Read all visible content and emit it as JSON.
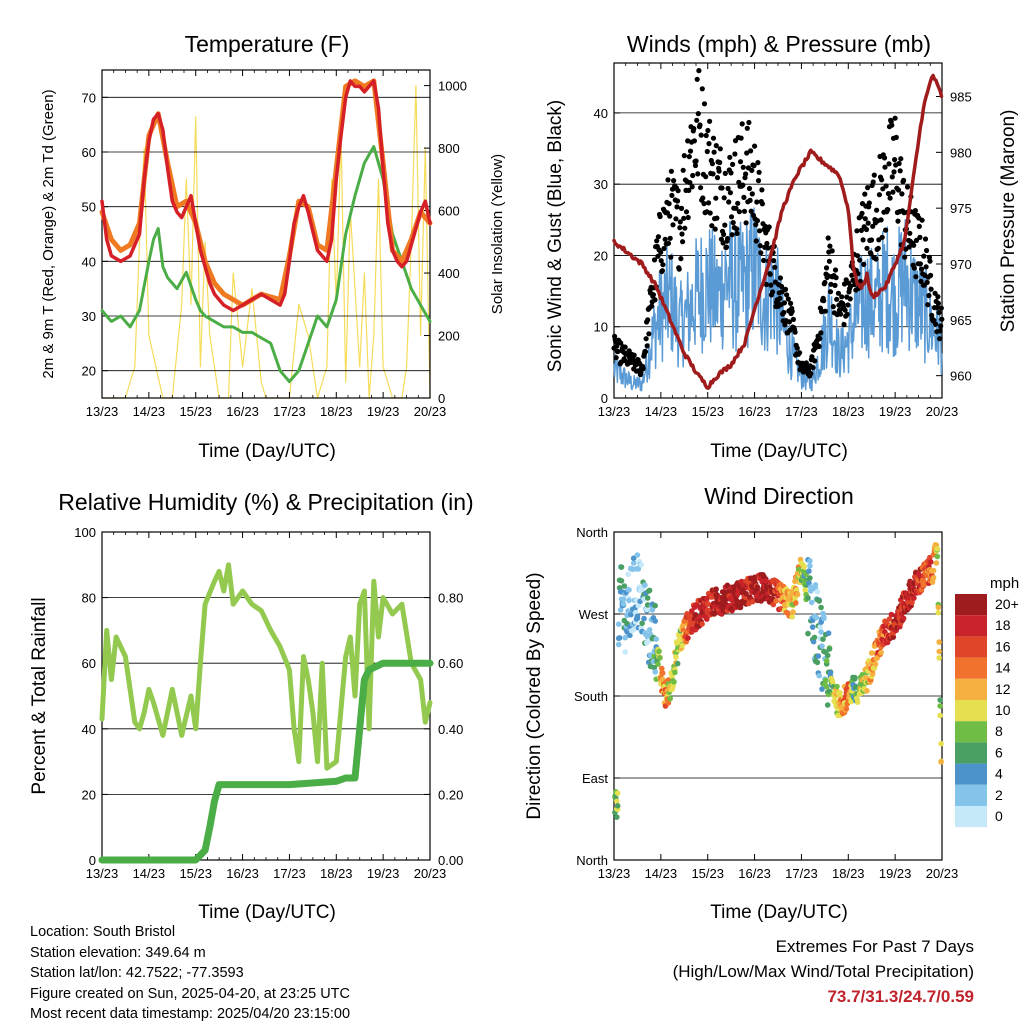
{
  "panels": {
    "temperature": {
      "title": "Temperature (F)",
      "xlabel": "Time (Day/UTC)",
      "ylabel_left": "2m & 9m T (Red, Orange) & 2m Td (Green)",
      "ylabel_right": "Solar Insolation (Yellow)"
    },
    "winds": {
      "title": "Winds (mph) & Pressure (mb)",
      "xlabel": "Time (Day/UTC)",
      "ylabel_left": "Sonic Wind & Gust (Blue, Black)",
      "ylabel_right": "Station Pressure (Maroon)"
    },
    "humidity": {
      "title": "Relative Humidity (%) & Precipitation (in)",
      "xlabel": "Time (Day/UTC)",
      "ylabel_left": "Percent & Total Rainfall"
    },
    "direction": {
      "title": "Wind Direction",
      "xlabel": "Time (Day/UTC)",
      "ylabel_left": "Direction (Colored By Speed)",
      "legend_title": "mph"
    }
  },
  "footer": {
    "location": "Location: South Bristol",
    "elevation": "Station elevation: 349.64 m",
    "latlon": "Station lat/lon: 42.7522; -77.3593",
    "created": "Figure created on Sun, 2025-04-20, at 23:25 UTC",
    "recent": "Most recent data timestamp: 2025/04/20 23:15:00"
  },
  "extremes": {
    "line1": "Extremes For Past 7 Days",
    "line2": "(High/Low/Max Wind/Total Precipitation)",
    "values": "73.7/31.3/24.7/0.59"
  },
  "colors": {
    "temp_2m": "#d62027",
    "temp_9m": "#f07a22",
    "dewpoint": "#4aad45",
    "solar": "#f5dc5a",
    "wind": "#5b9bd5",
    "gust": "#000000",
    "pressure": "#a01c1c",
    "rh": "#92c94e",
    "precip": "#4aad45"
  },
  "chart_data": [
    {
      "type": "line",
      "name": "temperature",
      "x_ticks": [
        "13/23",
        "14/23",
        "15/23",
        "16/23",
        "17/23",
        "18/23",
        "19/23",
        "20/23"
      ],
      "xlim": [
        0,
        7
      ],
      "ylim_left": [
        15,
        75
      ],
      "yticks_left": [
        20,
        30,
        40,
        50,
        60,
        70
      ],
      "ylim_right": [
        0,
        1050
      ],
      "yticks_right": [
        0,
        200,
        400,
        600,
        800,
        1000
      ],
      "grid": true,
      "series": [
        {
          "name": "2m T",
          "x": [
            0,
            0.1,
            0.2,
            0.4,
            0.6,
            0.8,
            0.9,
            1.0,
            1.1,
            1.2,
            1.3,
            1.4,
            1.5,
            1.6,
            1.7,
            1.8,
            1.9,
            2.0,
            2.1,
            2.2,
            2.3,
            2.4,
            2.5,
            2.6,
            2.8,
            3.0,
            3.2,
            3.4,
            3.6,
            3.8,
            3.9,
            4.0,
            4.1,
            4.2,
            4.3,
            4.4,
            4.6,
            4.8,
            4.9,
            5.0,
            5.1,
            5.2,
            5.3,
            5.4,
            5.5,
            5.6,
            5.7,
            5.8,
            5.9,
            6.0,
            6.1,
            6.2,
            6.3,
            6.4,
            6.5,
            6.6,
            6.7,
            6.8,
            6.9,
            7.0
          ],
          "y": [
            51,
            44,
            41,
            40,
            41,
            45,
            55,
            62,
            66,
            67,
            64,
            57,
            51,
            49,
            48,
            50,
            52,
            47,
            42,
            39,
            36,
            34,
            33,
            32,
            31,
            32,
            33,
            34,
            33,
            32,
            34,
            40,
            47,
            50,
            52,
            49,
            42,
            40,
            44,
            55,
            63,
            70,
            73,
            72,
            72,
            71,
            72,
            73,
            68,
            57,
            47,
            42,
            40,
            39,
            40,
            43,
            46,
            49,
            51,
            47
          ]
        },
        {
          "name": "9m T",
          "x": [
            0,
            0.2,
            0.4,
            0.6,
            0.8,
            1.0,
            1.2,
            1.4,
            1.6,
            1.8,
            2.0,
            2.2,
            2.4,
            2.6,
            3.0,
            3.4,
            3.8,
            4.0,
            4.2,
            4.4,
            4.6,
            4.8,
            5.0,
            5.2,
            5.4,
            5.6,
            5.8,
            6.0,
            6.2,
            6.4,
            6.6,
            6.8,
            7.0
          ],
          "y": [
            49,
            44,
            42,
            43,
            47,
            63,
            67,
            58,
            50,
            51,
            47,
            40,
            36,
            34,
            32,
            34,
            33,
            41,
            51,
            50,
            43,
            42,
            57,
            72,
            73,
            72,
            73,
            58,
            42,
            40,
            44,
            49,
            47
          ]
        },
        {
          "name": "2m Td",
          "x": [
            0,
            0.2,
            0.4,
            0.6,
            0.8,
            1.0,
            1.1,
            1.2,
            1.3,
            1.4,
            1.6,
            1.8,
            2.0,
            2.1,
            2.2,
            2.4,
            2.6,
            2.8,
            3.0,
            3.2,
            3.4,
            3.6,
            3.8,
            4.0,
            4.2,
            4.4,
            4.6,
            4.8,
            5.0,
            5.2,
            5.4,
            5.6,
            5.8,
            6.0,
            6.2,
            6.4,
            6.6,
            6.8,
            7.0
          ],
          "y": [
            31,
            29,
            30,
            28,
            31,
            40,
            44,
            46,
            39,
            37,
            35,
            38,
            33,
            31,
            30,
            29,
            28,
            28,
            27,
            27,
            26,
            25,
            20,
            18,
            20,
            25,
            30,
            28,
            33,
            45,
            52,
            58,
            61,
            55,
            45,
            40,
            35,
            32,
            29
          ]
        },
        {
          "name": "Solar",
          "axis": "right",
          "x": [
            0,
            0.3,
            0.5,
            0.7,
            0.8,
            0.9,
            1.0,
            1.3,
            1.5,
            1.7,
            1.8,
            1.9,
            2.0,
            2.1,
            2.2,
            2.3,
            2.5,
            2.7,
            2.8,
            3.0,
            3.2,
            3.4,
            3.5,
            3.6,
            3.8,
            4.0,
            4.2,
            4.4,
            4.6,
            4.8,
            4.9,
            5.0,
            5.1,
            5.2,
            5.3,
            5.5,
            5.6,
            5.7,
            5.8,
            5.9,
            6.0,
            6.2,
            6.4,
            6.5,
            6.6,
            6.7,
            6.8,
            6.9,
            7.0
          ],
          "y": [
            0,
            0,
            0,
            100,
            500,
            800,
            200,
            0,
            0,
            300,
            700,
            300,
            900,
            100,
            500,
            200,
            0,
            0,
            400,
            100,
            350,
            50,
            0,
            0,
            0,
            0,
            300,
            200,
            0,
            100,
            700,
            300,
            850,
            50,
            600,
            100,
            400,
            0,
            200,
            700,
            100,
            0,
            0,
            100,
            500,
            1000,
            200,
            800,
            0
          ]
        }
      ]
    },
    {
      "type": "scatter",
      "name": "winds",
      "x_ticks": [
        "13/23",
        "14/23",
        "15/23",
        "16/23",
        "17/23",
        "18/23",
        "19/23",
        "20/23"
      ],
      "xlim": [
        0,
        7
      ],
      "ylim_left": [
        0,
        47
      ],
      "yticks_left": [
        0,
        10,
        20,
        30,
        40
      ],
      "ylim_right": [
        958,
        988
      ],
      "yticks_right": [
        960,
        965,
        970,
        975,
        980,
        985
      ],
      "grid": true,
      "series": [
        {
          "name": "Sonic Wind",
          "x": [
            0,
            0.2,
            0.4,
            0.6,
            0.8,
            1.0,
            1.2,
            1.4,
            1.6,
            1.8,
            2.0,
            2.2,
            2.4,
            2.6,
            2.8,
            3.0,
            3.2,
            3.4,
            3.6,
            3.8,
            4.0,
            4.2,
            4.4,
            4.6,
            4.8,
            5.0,
            5.2,
            5.4,
            5.6,
            5.8,
            6.0,
            6.2,
            6.4,
            6.6,
            6.8,
            7.0
          ],
          "y": [
            4,
            3,
            2,
            2,
            8,
            12,
            14,
            10,
            12,
            15,
            16,
            14,
            17,
            15,
            16,
            18,
            14,
            16,
            10,
            6,
            3,
            2,
            6,
            12,
            6,
            8,
            12,
            14,
            13,
            16,
            14,
            17,
            14,
            12,
            10,
            8
          ]
        },
        {
          "name": "Gust",
          "x": [
            0,
            0.2,
            0.4,
            0.6,
            0.8,
            1.0,
            1.2,
            1.4,
            1.6,
            1.8,
            2.0,
            2.2,
            2.4,
            2.6,
            2.8,
            3.0,
            3.2,
            3.4,
            3.6,
            3.8,
            4.0,
            4.2,
            4.4,
            4.6,
            4.8,
            5.0,
            5.2,
            5.4,
            5.6,
            5.8,
            6.0,
            6.2,
            6.4,
            6.6,
            6.8,
            7.0
          ],
          "y": [
            7,
            6,
            5,
            4,
            14,
            22,
            26,
            24,
            34,
            38,
            33,
            30,
            28,
            30,
            32,
            30,
            22,
            18,
            14,
            10,
            4,
            4,
            10,
            20,
            12,
            14,
            20,
            25,
            26,
            30,
            33,
            25,
            22,
            20,
            14,
            10
          ]
        },
        {
          "name": "Pressure",
          "axis": "right",
          "x": [
            0,
            0.3,
            0.6,
            0.9,
            1.2,
            1.5,
            1.8,
            2.0,
            2.2,
            2.5,
            2.8,
            3.0,
            3.3,
            3.6,
            3.9,
            4.2,
            4.5,
            4.8,
            5.0,
            5.1,
            5.2,
            5.3,
            5.4,
            5.5,
            5.8,
            6.0,
            6.2,
            6.4,
            6.6,
            6.8,
            7.0
          ],
          "y": [
            972,
            971,
            970,
            968,
            965,
            962,
            960,
            959,
            960,
            961,
            963,
            966,
            970,
            975,
            978,
            980,
            979,
            978,
            975,
            970,
            968,
            968,
            969,
            967,
            968,
            970,
            972,
            978,
            984,
            987,
            985
          ]
        }
      ]
    },
    {
      "type": "line",
      "name": "humidity",
      "x_ticks": [
        "13/23",
        "14/23",
        "15/23",
        "16/23",
        "17/23",
        "18/23",
        "19/23",
        "20/23"
      ],
      "xlim": [
        0,
        7
      ],
      "ylim_left": [
        0,
        100
      ],
      "yticks_left": [
        0,
        20,
        40,
        60,
        80,
        100
      ],
      "ylim_right": [
        0,
        1.0
      ],
      "yticks_right": [
        0.0,
        0.2,
        0.4,
        0.6,
        0.8
      ],
      "grid": true,
      "series": [
        {
          "name": "RH",
          "x": [
            0,
            0.1,
            0.2,
            0.3,
            0.5,
            0.7,
            0.8,
            0.9,
            1.0,
            1.1,
            1.3,
            1.5,
            1.7,
            1.8,
            1.9,
            2.0,
            2.1,
            2.2,
            2.4,
            2.5,
            2.6,
            2.7,
            2.8,
            3.0,
            3.2,
            3.4,
            3.6,
            3.8,
            4.0,
            4.1,
            4.2,
            4.3,
            4.4,
            4.5,
            4.6,
            4.7,
            4.8,
            5.0,
            5.2,
            5.3,
            5.4,
            5.5,
            5.6,
            5.7,
            5.8,
            5.9,
            6.0,
            6.2,
            6.4,
            6.6,
            6.8,
            6.9,
            7.0
          ],
          "y": [
            43,
            70,
            55,
            68,
            62,
            42,
            40,
            45,
            52,
            48,
            38,
            52,
            38,
            44,
            50,
            40,
            60,
            78,
            85,
            88,
            82,
            90,
            78,
            82,
            78,
            76,
            70,
            65,
            58,
            40,
            30,
            62,
            55,
            45,
            30,
            60,
            28,
            30,
            62,
            68,
            50,
            78,
            82,
            40,
            85,
            68,
            80,
            75,
            78,
            60,
            55,
            42,
            48
          ]
        },
        {
          "name": "Precipitation",
          "axis": "right",
          "x": [
            0,
            1.0,
            2.0,
            2.2,
            2.3,
            2.4,
            2.5,
            2.6,
            3.0,
            4.0,
            5.0,
            5.2,
            5.4,
            5.5,
            5.6,
            5.7,
            6.0,
            6.5,
            7.0
          ],
          "y": [
            0.0,
            0.0,
            0.0,
            0.03,
            0.1,
            0.18,
            0.23,
            0.23,
            0.23,
            0.23,
            0.24,
            0.25,
            0.25,
            0.4,
            0.55,
            0.58,
            0.6,
            0.6,
            0.6
          ]
        }
      ]
    },
    {
      "type": "scatter",
      "name": "direction",
      "x_ticks": [
        "13/23",
        "14/23",
        "15/23",
        "16/23",
        "17/23",
        "18/23",
        "19/23",
        "20/23"
      ],
      "xlim": [
        0,
        7
      ],
      "yticks": [
        "North",
        "East",
        "South",
        "West",
        "North"
      ],
      "ylim": [
        0,
        360
      ],
      "grid": true,
      "legend": {
        "title": "mph",
        "labels": [
          "0",
          "2",
          "4",
          "6",
          "8",
          "10",
          "12",
          "14",
          "16",
          "18",
          "20+"
        ]
      },
      "color_scale": [
        "#c6e9fa",
        "#84c3ea",
        "#4d93cb",
        "#4a9f62",
        "#6fbd45",
        "#e6df50",
        "#f6b03f",
        "#f0722c",
        "#e0452a",
        "#c8232a",
        "#9e1b1e"
      ],
      "series": [
        {
          "name": "Direction",
          "x": [
            0.1,
            0.3,
            0.5,
            0.7,
            0.9,
            1.0,
            1.1,
            1.2,
            1.4,
            1.6,
            1.8,
            2.0,
            2.3,
            2.6,
            2.9,
            3.2,
            3.5,
            3.8,
            3.9,
            4.0,
            4.2,
            4.4,
            4.6,
            4.8,
            5.0,
            5.1,
            5.2,
            5.4,
            5.6,
            5.8,
            6.0,
            6.2,
            6.4,
            6.6,
            6.8,
            6.9,
            7.0
          ],
          "y": [
            280,
            270,
            300,
            260,
            240,
            200,
            180,
            190,
            240,
            260,
            270,
            280,
            285,
            290,
            295,
            300,
            290,
            280,
            300,
            320,
            280,
            240,
            200,
            170,
            180,
            190,
            180,
            200,
            230,
            250,
            260,
            280,
            300,
            310,
            320,
            340,
            60
          ],
          "speed": [
            4,
            3,
            2,
            3,
            5,
            12,
            14,
            10,
            8,
            16,
            18,
            18,
            19,
            20,
            19,
            20,
            16,
            10,
            12,
            9,
            4,
            3,
            6,
            12,
            14,
            6,
            8,
            10,
            14,
            16,
            18,
            18,
            18,
            16,
            14,
            10,
            8
          ]
        }
      ]
    }
  ]
}
